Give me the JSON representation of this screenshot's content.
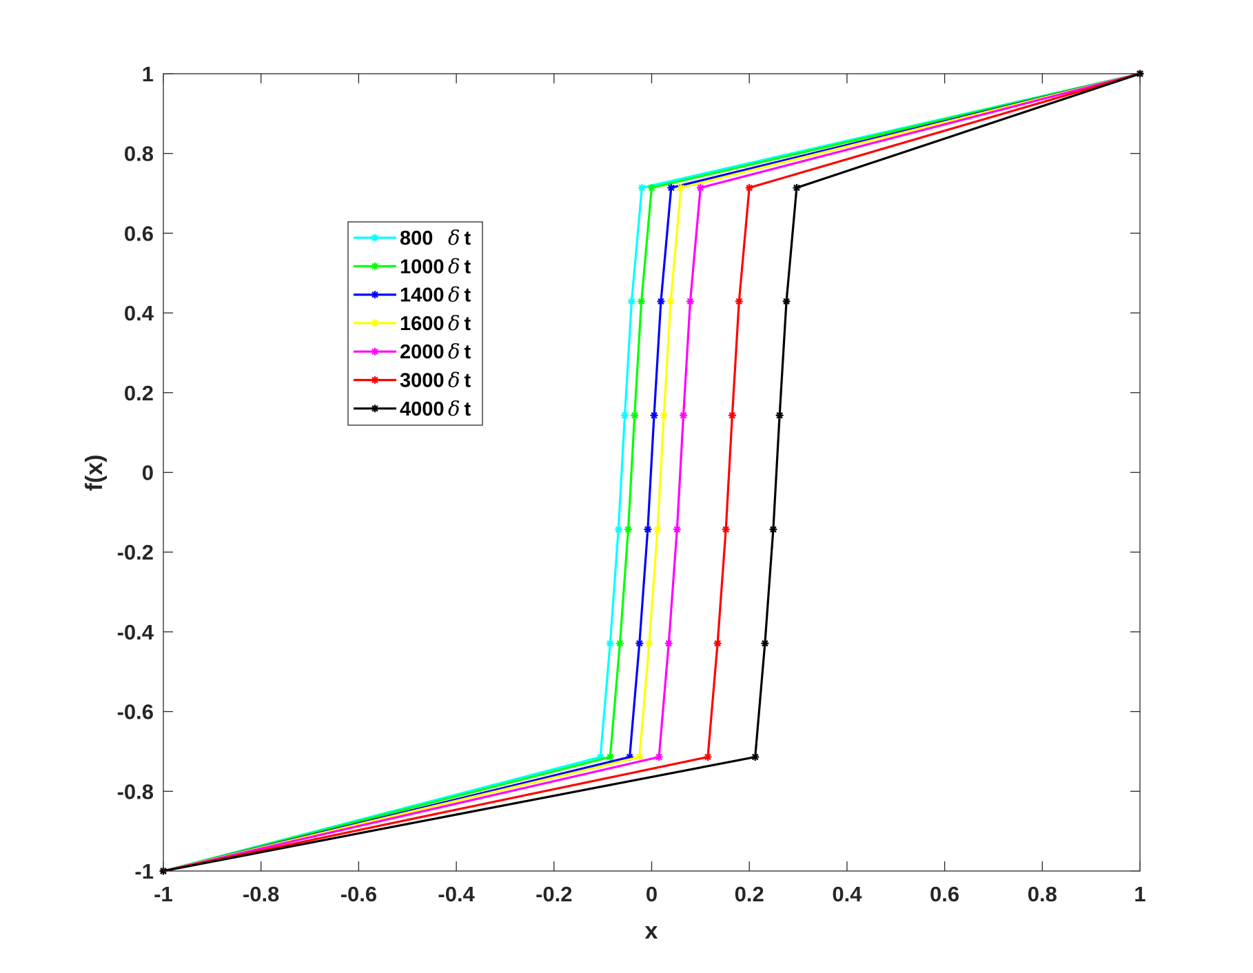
{
  "chart_data": {
    "type": "line",
    "title": "",
    "xlabel": "x",
    "ylabel": "f(x)",
    "xlim": [
      -1,
      1
    ],
    "ylim": [
      -1,
      1
    ],
    "x_ticks": [
      -1,
      -0.8,
      -0.6,
      -0.4,
      -0.2,
      0,
      0.2,
      0.4,
      0.6,
      0.8,
      1
    ],
    "y_ticks": [
      -1,
      -0.8,
      -0.6,
      -0.4,
      -0.2,
      0,
      0.2,
      0.4,
      0.6,
      0.8,
      1
    ],
    "x_tick_labels": [
      "-1",
      "-0.8",
      "-0.6",
      "-0.4",
      "-0.2",
      "0",
      "0.2",
      "0.4",
      "0.6",
      "0.8",
      "1"
    ],
    "y_tick_labels": [
      "-1",
      "-0.8",
      "-0.6",
      "-0.4",
      "-0.2",
      "0",
      "0.2",
      "0.4",
      "0.6",
      "0.8",
      "1"
    ],
    "grid": false,
    "legend_position": "upper-left",
    "y": [
      -1,
      -0.714,
      -0.429,
      -0.143,
      0.143,
      0.429,
      0.714,
      1
    ],
    "series": [
      {
        "name": "800",
        "delta_label": "δ",
        "t_label": "t",
        "color": "#00FFFF",
        "x": [
          -1,
          -0.105,
          -0.085,
          -0.068,
          -0.055,
          -0.041,
          -0.02,
          1
        ]
      },
      {
        "name": "1000",
        "delta_label": "δ",
        "t_label": "t",
        "color": "#00FF00",
        "x": [
          -1,
          -0.085,
          -0.065,
          -0.048,
          -0.035,
          -0.021,
          0.0,
          1
        ]
      },
      {
        "name": "1400",
        "delta_label": "δ",
        "t_label": "t",
        "color": "#0000FF",
        "x": [
          -1,
          -0.045,
          -0.025,
          -0.008,
          0.005,
          0.019,
          0.04,
          1
        ]
      },
      {
        "name": "1600",
        "delta_label": "δ",
        "t_label": "t",
        "color": "#FFFF00",
        "x": [
          -1,
          -0.025,
          -0.005,
          0.012,
          0.025,
          0.039,
          0.06,
          1
        ]
      },
      {
        "name": "2000",
        "delta_label": "δ",
        "t_label": "t",
        "color": "#FF00FF",
        "x": [
          -1,
          0.015,
          0.035,
          0.052,
          0.065,
          0.079,
          0.1,
          1
        ]
      },
      {
        "name": "3000",
        "delta_label": "δ",
        "t_label": "t",
        "color": "#FF0000",
        "x": [
          -1,
          0.115,
          0.135,
          0.152,
          0.165,
          0.179,
          0.2,
          1
        ]
      },
      {
        "name": "4000",
        "delta_label": "δ",
        "t_label": "t",
        "color": "#000000",
        "x": [
          -1,
          0.212,
          0.232,
          0.249,
          0.262,
          0.276,
          0.297,
          1
        ]
      }
    ]
  }
}
